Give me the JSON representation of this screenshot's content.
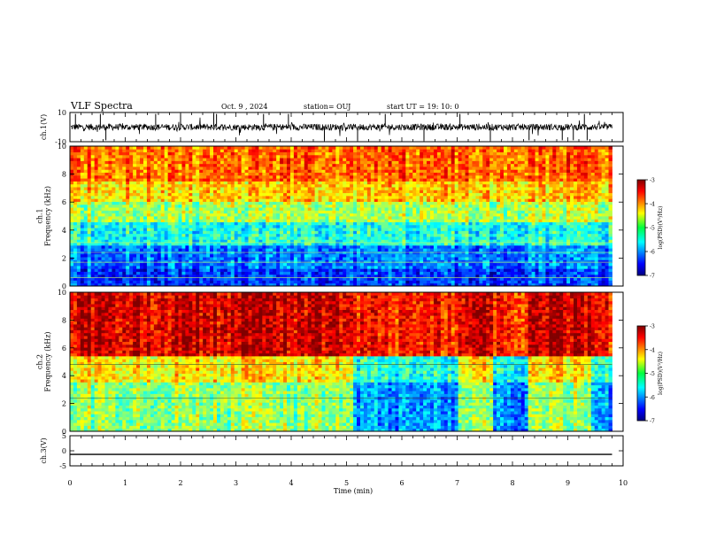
{
  "header": {
    "title": "VLF Spectra",
    "date": "Oct. 9 , 2024",
    "station": "station= OUJ",
    "start": "start UT = 19: 10: 0"
  },
  "chart_data": [
    {
      "type": "line",
      "panel": "ch1-waveform",
      "ylabel": "ch.1(V)",
      "ylim": [
        -10,
        10
      ],
      "yticks": [
        "10",
        "-10"
      ],
      "description_values": {
        "baseline": 0,
        "spike_min": -9,
        "spike_max": 9
      },
      "spike_times_min": [
        0.1,
        0.55,
        0.65,
        1.55,
        2.0,
        2.6,
        2.65,
        3.5,
        3.95,
        4.6,
        5.2,
        5.7,
        6.4,
        7.05,
        7.6,
        8.3,
        8.9,
        9.1,
        9.3,
        9.35
      ]
    },
    {
      "type": "heatmap",
      "panel": "ch1-spectrogram",
      "ylabel": "ch.1\nFrequency (kHz)",
      "ylim": [
        0,
        10
      ],
      "yticks": [
        "0",
        "2",
        "4",
        "6",
        "8",
        "10"
      ],
      "colorbar": {
        "label": "log(PSD)(V²/Hz)",
        "range": [
          -7,
          -3
        ],
        "ticks": [
          "-3",
          "-4",
          "-5",
          "-6",
          "-7"
        ]
      },
      "bands": [
        {
          "f_from": 0,
          "f_to": 1.2,
          "level": -6.3
        },
        {
          "f_from": 1.2,
          "f_to": 3.0,
          "level": -6.0
        },
        {
          "f_from": 3.0,
          "f_to": 4.5,
          "level": -5.4
        },
        {
          "f_from": 4.5,
          "f_to": 6.0,
          "level": -4.8
        },
        {
          "f_from": 6.0,
          "f_to": 7.5,
          "level": -4.3
        },
        {
          "f_from": 7.5,
          "f_to": 10,
          "level": -3.9
        }
      ]
    },
    {
      "type": "heatmap",
      "panel": "ch2-spectrogram",
      "ylabel": "ch.2\nFrequency (kHz)",
      "ylim": [
        0,
        10
      ],
      "yticks": [
        "0",
        "2",
        "4",
        "6",
        "8",
        "10"
      ],
      "colorbar": {
        "label": "log(PSD)(V²/Hz)",
        "range": [
          -7,
          -3
        ],
        "ticks": [
          "-3",
          "-4",
          "-5",
          "-6",
          "-7"
        ]
      },
      "bands": [
        {
          "f_from": 0,
          "f_to": 3.5,
          "level": -4.9
        },
        {
          "f_from": 3.5,
          "f_to": 5.5,
          "level": -4.4
        },
        {
          "f_from": 5.5,
          "f_to": 10,
          "level": -3.3
        }
      ],
      "quiet_intervals_min": [
        [
          5.15,
          7.0
        ],
        [
          7.65,
          8.3
        ],
        [
          9.45,
          9.8
        ]
      ]
    },
    {
      "type": "line",
      "panel": "ch3-waveform",
      "ylabel": "ch.3(V)",
      "ylim": [
        -5,
        5
      ],
      "yticks": [
        "5",
        "0",
        "-5"
      ],
      "values": [
        {
          "t": 0,
          "v": -1.2
        },
        {
          "t": 9.8,
          "v": -1.2
        }
      ]
    }
  ],
  "xaxis": {
    "label": "Time (min)",
    "range": [
      0,
      10
    ],
    "ticks": [
      "0",
      "1",
      "2",
      "3",
      "4",
      "5",
      "6",
      "7",
      "8",
      "9",
      "10"
    ]
  },
  "colors": {
    "frame": "#000000",
    "background": "#ffffff"
  }
}
